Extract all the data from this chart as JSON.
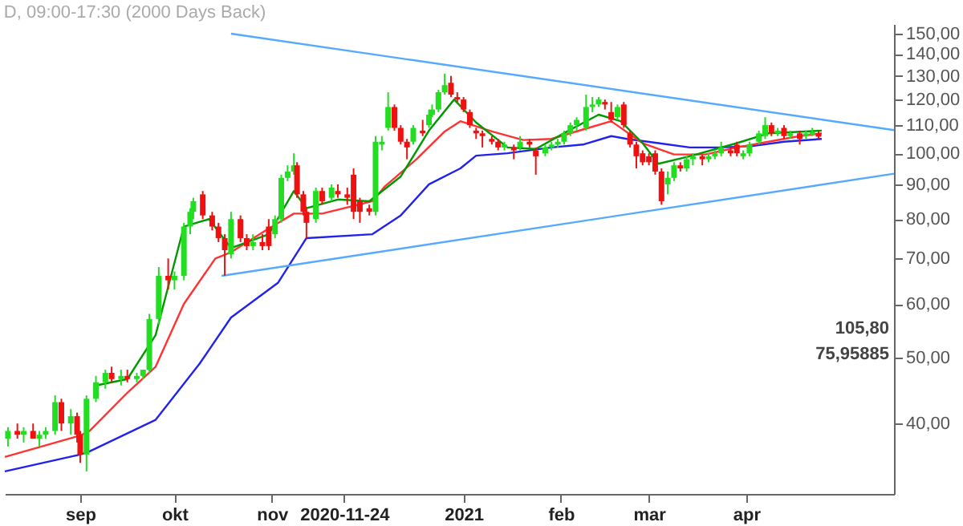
{
  "chart_data": {
    "type": "candlestick",
    "title": "D, 09:00-17:30 (2000 Days Back)",
    "x": [
      "2020-08-09",
      "2020-08-12",
      "2020-08-14",
      "2020-08-17",
      "2020-08-19",
      "2020-08-21",
      "2020-08-24",
      "2020-08-26",
      "2020-08-29",
      "2020-08-31",
      "2020-09-01",
      "2020-09-03",
      "2020-09-06",
      "2020-09-09",
      "2020-09-11",
      "2020-09-14",
      "2020-09-16",
      "2020-09-19",
      "2020-09-21",
      "2020-09-23",
      "2020-09-26",
      "2020-09-29",
      "2020-10-01",
      "2020-10-04",
      "2020-10-06",
      "2020-10-07",
      "2020-10-10",
      "2020-10-13",
      "2020-10-15",
      "2020-10-17",
      "2020-10-19",
      "2020-10-22",
      "2020-10-24",
      "2020-10-26",
      "2020-10-29",
      "2020-10-31",
      "2020-11-02",
      "2020-11-04",
      "2020-11-06",
      "2020-11-08",
      "2020-11-09",
      "2020-11-11",
      "2020-11-12",
      "2020-11-15",
      "2020-11-17",
      "2020-11-20",
      "2020-11-22",
      "2020-11-25",
      "2020-11-27",
      "2020-11-29",
      "2020-12-02",
      "2020-12-04",
      "2020-12-06",
      "2020-12-08",
      "2020-12-10",
      "2020-12-12",
      "2020-12-14",
      "2020-12-16",
      "2020-12-19",
      "2020-12-21",
      "2020-12-22",
      "2020-12-24",
      "2020-12-26",
      "2020-12-28",
      "2020-12-30",
      "2021-01-01",
      "2021-01-03",
      "2021-01-05",
      "2021-01-07",
      "2021-01-10",
      "2021-01-12",
      "2021-01-14",
      "2021-01-17",
      "2021-01-19",
      "2021-01-22",
      "2021-01-24",
      "2021-01-27",
      "2021-01-29",
      "2021-01-31",
      "2021-02-02",
      "2021-02-04",
      "2021-02-06",
      "2021-02-09",
      "2021-02-11",
      "2021-02-13",
      "2021-02-15",
      "2021-02-17",
      "2021-02-19",
      "2021-02-21",
      "2021-02-23",
      "2021-02-25",
      "2021-02-27",
      "2021-03-01",
      "2021-03-03",
      "2021-03-05",
      "2021-03-07",
      "2021-03-09",
      "2021-03-11",
      "2021-03-13",
      "2021-03-15",
      "2021-03-18",
      "2021-03-20",
      "2021-03-22",
      "2021-03-24",
      "2021-03-27",
      "2021-03-29",
      "2021-03-31",
      "2021-04-02",
      "2021-04-05",
      "2021-04-07",
      "2021-04-09",
      "2021-04-11",
      "2021-04-13",
      "2021-04-15",
      "2021-04-18",
      "2021-04-20",
      "2021-04-22",
      "2021-04-24"
    ],
    "ohlc": [
      [
        38,
        39.5,
        37,
        39
      ],
      [
        39,
        40,
        38,
        38.5
      ],
      [
        38.5,
        39.5,
        37.5,
        39
      ],
      [
        39,
        40,
        38,
        38
      ],
      [
        38,
        39,
        37,
        38.5
      ],
      [
        38.5,
        39.5,
        38,
        39
      ],
      [
        39,
        44,
        38.5,
        43
      ],
      [
        43,
        43.5,
        39,
        40
      ],
      [
        40,
        42,
        38.5,
        41
      ],
      [
        41,
        41.5,
        37.5,
        38.5
      ],
      [
        38.5,
        39,
        35,
        36
      ],
      [
        36,
        44,
        34,
        43.5
      ],
      [
        43.5,
        47,
        43,
        46
      ],
      [
        46,
        48,
        45,
        47.5
      ],
      [
        47.5,
        48.5,
        46,
        46.5
      ],
      [
        46.5,
        48,
        45.5,
        47
      ],
      [
        47,
        48,
        46,
        46.5
      ],
      [
        46.5,
        47.5,
        46,
        47
      ],
      [
        47,
        48,
        46.5,
        48
      ],
      [
        48,
        58,
        47.5,
        57
      ],
      [
        57,
        68,
        56,
        66
      ],
      [
        66,
        70,
        63,
        65
      ],
      [
        65,
        67,
        63,
        66
      ],
      [
        66,
        79,
        65,
        78
      ],
      [
        78,
        83,
        76,
        82
      ],
      [
        82,
        86,
        80,
        85
      ],
      [
        87,
        88,
        80,
        81
      ],
      [
        81,
        82,
        77,
        78
      ],
      [
        78,
        79,
        74,
        75
      ],
      [
        75,
        76,
        66,
        72
      ],
      [
        71,
        82,
        70,
        80
      ],
      [
        80,
        81,
        74,
        75
      ],
      [
        75,
        76,
        72,
        73
      ],
      [
        73,
        76,
        72,
        74
      ],
      [
        74,
        76,
        72,
        73
      ],
      [
        78,
        80,
        72,
        73
      ],
      [
        76,
        81,
        75,
        80
      ],
      [
        80,
        93,
        79,
        92
      ],
      [
        92,
        96,
        91,
        94
      ],
      [
        94,
        100,
        93,
        96
      ],
      [
        96,
        97,
        86,
        87
      ],
      [
        87,
        88,
        81,
        82
      ],
      [
        82,
        83,
        75,
        79
      ],
      [
        80,
        89,
        79,
        88
      ],
      [
        88,
        89,
        84,
        85
      ],
      [
        86,
        90,
        85,
        89
      ],
      [
        88,
        90,
        86,
        87
      ],
      [
        87,
        89,
        84,
        86
      ],
      [
        93,
        95,
        80,
        82
      ],
      [
        85,
        86,
        79,
        82
      ],
      [
        83,
        84,
        81,
        82
      ],
      [
        82,
        106,
        81,
        104
      ],
      [
        103,
        106,
        101,
        104
      ],
      [
        109,
        123,
        108,
        117
      ],
      [
        117,
        118,
        108,
        109
      ],
      [
        109,
        110,
        103,
        104
      ],
      [
        104,
        105,
        98,
        102
      ],
      [
        104,
        110,
        103,
        109
      ],
      [
        108,
        112,
        106,
        107
      ],
      [
        110,
        116,
        109,
        114
      ],
      [
        114,
        118,
        113,
        116
      ],
      [
        116,
        124,
        115,
        123
      ],
      [
        123,
        131,
        122,
        126
      ],
      [
        127,
        130,
        121,
        122
      ],
      [
        121,
        123,
        119,
        120
      ],
      [
        120,
        121,
        115,
        116
      ],
      [
        115,
        116,
        109,
        110
      ],
      [
        108,
        109,
        105,
        107
      ],
      [
        107,
        108,
        102,
        106
      ],
      [
        105,
        106,
        103,
        104
      ],
      [
        104,
        105,
        101,
        102
      ],
      [
        102,
        104,
        101,
        103
      ],
      [
        102,
        103,
        98,
        101
      ],
      [
        102,
        106,
        101,
        104
      ],
      [
        104,
        105,
        102,
        103
      ],
      [
        101,
        102,
        93,
        99
      ],
      [
        100,
        103,
        99,
        102
      ],
      [
        102,
        104,
        101,
        103
      ],
      [
        103,
        105,
        102,
        104
      ],
      [
        104,
        108,
        103,
        107
      ],
      [
        107,
        111,
        106,
        110
      ],
      [
        110,
        113,
        108,
        112
      ],
      [
        109,
        122,
        108,
        117
      ],
      [
        117,
        121,
        115,
        118
      ],
      [
        118,
        121,
        117,
        120
      ],
      [
        119,
        120,
        116,
        118
      ],
      [
        115,
        119,
        111,
        112
      ],
      [
        113,
        118,
        112,
        117
      ],
      [
        118,
        119,
        109,
        110
      ],
      [
        107,
        108,
        102,
        103
      ],
      [
        103,
        104,
        95,
        99
      ],
      [
        100,
        101,
        96,
        97
      ],
      [
        99,
        100,
        96,
        97
      ],
      [
        100,
        101,
        93,
        94
      ],
      [
        94,
        95,
        84,
        85
      ],
      [
        90,
        94,
        87,
        92
      ],
      [
        92,
        97,
        91,
        96
      ],
      [
        96,
        97,
        94,
        95
      ],
      [
        95,
        99,
        94,
        98
      ],
      [
        98,
        100,
        96,
        99
      ],
      [
        99,
        99.5,
        96,
        98
      ],
      [
        98,
        100,
        97,
        99
      ],
      [
        99,
        101,
        98,
        100
      ],
      [
        100,
        104,
        99,
        102
      ],
      [
        101,
        102,
        99,
        100
      ],
      [
        103,
        104,
        99,
        100
      ],
      [
        99,
        101,
        98,
        100
      ],
      [
        100,
        104,
        99,
        103
      ],
      [
        104,
        108,
        103,
        107
      ],
      [
        106,
        113,
        105,
        110
      ],
      [
        110,
        111,
        106,
        107
      ],
      [
        107,
        109,
        106,
        108
      ],
      [
        109,
        110,
        105,
        106
      ],
      [
        106,
        108,
        105,
        107
      ],
      [
        107,
        108,
        103,
        105
      ],
      [
        106,
        108,
        105,
        107
      ],
      [
        106.5,
        109,
        106,
        107.5
      ],
      [
        107,
        108,
        105,
        105.8
      ]
    ],
    "colors": [
      "#22dd22",
      "#ee1111",
      "#22dd22",
      "#ee1111",
      "#22dd22",
      "#22dd22",
      "#22dd22",
      "#ee1111",
      "#22dd22",
      "#ee1111",
      "#ee1111",
      "#22dd22",
      "#22dd22",
      "#22dd22",
      "#ee1111",
      "#22dd22",
      "#ee1111",
      "#22dd22",
      "#22dd22",
      "#22dd22",
      "#22dd22",
      "#ee1111",
      "#22dd22",
      "#22dd22",
      "#22dd22",
      "#22dd22",
      "#ee1111",
      "#ee1111",
      "#ee1111",
      "#ee1111",
      "#22dd22",
      "#ee1111",
      "#ee1111",
      "#22dd22",
      "#ee1111",
      "#ee1111",
      "#22dd22",
      "#22dd22",
      "#22dd22",
      "#22dd22",
      "#ee1111",
      "#ee1111",
      "#ee1111",
      "#22dd22",
      "#ee1111",
      "#22dd22",
      "#ee1111",
      "#ee1111",
      "#ee1111",
      "#ee1111",
      "#ee1111",
      "#22dd22",
      "#22dd22",
      "#22dd22",
      "#ee1111",
      "#ee1111",
      "#ee1111",
      "#22dd22",
      "#ee1111",
      "#22dd22",
      "#22dd22",
      "#22dd22",
      "#22dd22",
      "#ee1111",
      "#ee1111",
      "#ee1111",
      "#ee1111",
      "#ee1111",
      "#ee1111",
      "#ee1111",
      "#ee1111",
      "#22dd22",
      "#ee1111",
      "#22dd22",
      "#ee1111",
      "#ee1111",
      "#22dd22",
      "#22dd22",
      "#22dd22",
      "#22dd22",
      "#22dd22",
      "#22dd22",
      "#22dd22",
      "#22dd22",
      "#22dd22",
      "#ee1111",
      "#ee1111",
      "#22dd22",
      "#ee1111",
      "#ee1111",
      "#ee1111",
      "#ee1111",
      "#ee1111",
      "#ee1111",
      "#ee1111",
      "#22dd22",
      "#22dd22",
      "#ee1111",
      "#22dd22",
      "#22dd22",
      "#ee1111",
      "#22dd22",
      "#22dd22",
      "#22dd22",
      "#ee1111",
      "#ee1111",
      "#22dd22",
      "#22dd22",
      "#22dd22",
      "#22dd22",
      "#ee1111",
      "#22dd22",
      "#ee1111",
      "#22dd22",
      "#ee1111",
      "#22dd22",
      "#22dd22",
      "#ee1111"
    ],
    "series": [
      {
        "type": "line",
        "color": "#2222ee",
        "x": [
          "2020-08-08",
          "2020-09-01",
          "2020-09-04",
          "2020-09-25",
          "2020-10-09",
          "2020-10-19",
          "2020-11-03",
          "2020-11-12",
          "2020-12-03",
          "2020-12-12",
          "2020-12-21",
          "2020-12-31",
          "2021-01-05",
          "2021-01-15",
          "2021-01-29",
          "2021-02-08",
          "2021-02-17",
          "2021-02-22",
          "2021-03-04",
          "2021-03-14",
          "2021-03-24",
          "2021-04-03",
          "2021-04-13",
          "2021-04-25"
        ],
        "values": [
          34,
          36,
          36.4,
          40.5,
          49,
          57.3,
          64.5,
          75,
          76,
          81,
          90,
          95,
          99.2,
          100,
          102,
          103,
          106,
          105,
          103.5,
          102,
          102,
          102.5,
          104,
          105
        ]
      },
      {
        "type": "line",
        "color": "#ff3333",
        "x": [
          "2020-08-08",
          "2020-09-01",
          "2020-09-04",
          "2020-09-16",
          "2020-09-25",
          "2020-10-04",
          "2020-10-14",
          "2020-10-19",
          "2020-10-31",
          "2020-11-08",
          "2020-11-17",
          "2020-12-03",
          "2020-12-07",
          "2020-12-17",
          "2020-12-26",
          "2020-12-31",
          "2021-01-10",
          "2021-01-20",
          "2021-01-29",
          "2021-02-08",
          "2021-02-17",
          "2021-02-27",
          "2021-03-09",
          "2021-03-19",
          "2021-03-29",
          "2021-04-08",
          "2021-04-18",
          "2021-04-25"
        ],
        "values": [
          35.7,
          38.4,
          39,
          44.4,
          48.5,
          60,
          70,
          71.5,
          77.5,
          81.5,
          81.5,
          85,
          89.4,
          98,
          107.7,
          111.5,
          107.7,
          104.6,
          105,
          108.4,
          111.5,
          103.5,
          99.6,
          99.6,
          102,
          104,
          106,
          107
        ]
      },
      {
        "type": "line",
        "color": "#009900",
        "x": [
          "2020-09-06",
          "2020-09-16",
          "2020-09-25",
          "2020-10-04",
          "2020-10-12",
          "2020-10-19",
          "2020-10-31",
          "2020-11-08",
          "2020-11-12",
          "2020-11-22",
          "2020-12-02",
          "2020-12-12",
          "2020-12-21",
          "2020-12-29",
          "2021-01-05",
          "2021-01-15",
          "2021-01-24",
          "2021-02-03",
          "2021-02-13",
          "2021-02-20",
          "2021-02-27",
          "2021-03-04",
          "2021-03-14",
          "2021-03-29",
          "2021-04-08",
          "2021-04-25"
        ],
        "values": [
          45.5,
          46.5,
          54,
          78,
          80,
          72.5,
          76,
          88,
          83,
          85.5,
          85,
          92.4,
          108,
          120,
          111,
          102,
          101.5,
          107.7,
          114,
          111.5,
          103.5,
          96.5,
          99,
          103.5,
          107,
          108
        ]
      },
      {
        "type": "line",
        "color": "#55aaff",
        "x": [
          "2020-10-19",
          "2021-05-18"
        ],
        "values": [
          150,
          108.2
        ]
      },
      {
        "type": "line",
        "color": "#55aaff",
        "x": [
          "2020-10-16",
          "2021-05-18"
        ],
        "values": [
          66,
          93.3
        ]
      }
    ],
    "xlim": [
      "2020-08-08",
      "2021-05-18"
    ],
    "xticks": [
      {
        "value": "2020-09-01",
        "label": "sep"
      },
      {
        "value": "2020-10-01",
        "label": "okt"
      },
      {
        "value": "2020-11-01",
        "label": "nov"
      },
      {
        "value": "2020-11-24",
        "label": "2020-11-24"
      },
      {
        "value": "2021-01-01",
        "label": "2021"
      },
      {
        "value": "2021-02-01",
        "label": "feb"
      },
      {
        "value": "2021-03-01",
        "label": "mar"
      },
      {
        "value": "2021-04-01",
        "label": "apr"
      }
    ],
    "ylim": [
      31.5,
      155
    ],
    "log": "y",
    "yticks": [
      {
        "value": 40,
        "label": "40,00"
      },
      {
        "value": 50,
        "label": "50,00"
      },
      {
        "value": 60,
        "label": "60,00"
      },
      {
        "value": 70,
        "label": "70,00"
      },
      {
        "value": 80,
        "label": "80,00"
      },
      {
        "value": 90,
        "label": "90,00"
      },
      {
        "value": 100,
        "label": "100,00"
      },
      {
        "value": 110,
        "label": "110,00"
      },
      {
        "value": 120,
        "label": "120,00"
      },
      {
        "value": 130,
        "label": "130,00"
      },
      {
        "value": 140,
        "label": "140,00"
      },
      {
        "value": 150,
        "label": "150,00"
      }
    ],
    "grid": false,
    "annotations": [
      "105,80",
      "75,95885"
    ]
  }
}
